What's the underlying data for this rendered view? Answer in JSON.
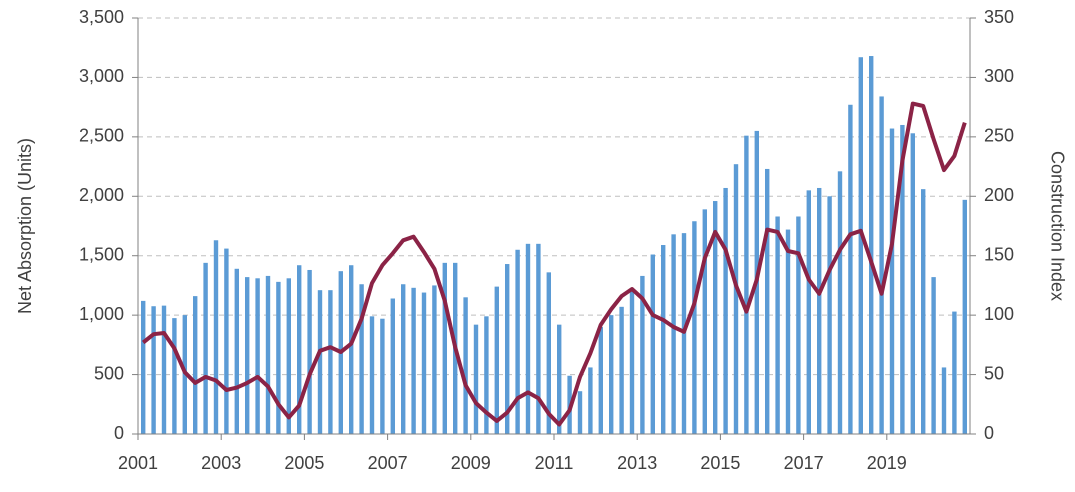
{
  "chart_data": {
    "type": "bar_line",
    "y_label": "Net Absorption (Units)",
    "y2_label": "Construction Index",
    "categories": [
      "2001",
      null,
      null,
      null,
      null,
      null,
      null,
      null,
      "2003",
      null,
      null,
      null,
      null,
      null,
      null,
      null,
      "2005",
      null,
      null,
      null,
      null,
      null,
      null,
      null,
      "2007",
      null,
      null,
      null,
      null,
      null,
      null,
      null,
      "2009",
      null,
      null,
      null,
      null,
      null,
      null,
      null,
      "2011",
      null,
      null,
      null,
      null,
      null,
      null,
      null,
      "2013",
      null,
      null,
      null,
      null,
      null,
      null,
      null,
      "2015",
      null,
      null,
      null,
      null,
      null,
      null,
      null,
      "2017",
      null,
      null,
      null,
      null,
      null,
      null,
      null,
      "2019",
      null,
      null,
      null,
      null,
      null,
      null,
      null
    ],
    "series": [
      {
        "type": "bar",
        "color": "#5b9bd5",
        "values": [
          1120,
          1075,
          1080,
          975,
          1000,
          1160,
          1440,
          1630,
          1560,
          1390,
          1320,
          1310,
          1330,
          1280,
          1310,
          1420,
          1380,
          1210,
          1210,
          1370,
          1420,
          1260,
          990,
          970,
          1140,
          1260,
          1230,
          1190,
          1250,
          1440,
          1440,
          1150,
          920,
          990,
          1240,
          1430,
          1550,
          1600,
          1600,
          1360,
          920,
          490,
          360,
          560,
          900,
          1000,
          1070,
          1200,
          1330,
          1510,
          1590,
          1680,
          1690,
          1790,
          1890,
          1960,
          2070,
          2270,
          2510,
          2550,
          2230,
          1830,
          1720,
          1830,
          2050,
          2070,
          2000,
          2210,
          2770,
          3170,
          3180,
          2840,
          2570,
          2600,
          2530,
          2060,
          1320,
          560,
          1030,
          1970
        ]
      },
      {
        "type": "line",
        "axis": "y2",
        "color": "#8b2346",
        "values": [
          77,
          84,
          85,
          72,
          52,
          43,
          48,
          45,
          37,
          39,
          43,
          48,
          40,
          25,
          14,
          24,
          50,
          70,
          73,
          69,
          76,
          97,
          127,
          142,
          152,
          163,
          166,
          153,
          139,
          112,
          73,
          41,
          26,
          18,
          11,
          18,
          30,
          35,
          30,
          17,
          8,
          20,
          48,
          68,
          92,
          105,
          116,
          122,
          114,
          100,
          96,
          90,
          86,
          110,
          148,
          170,
          155,
          125,
          103,
          130,
          172,
          170,
          154,
          152,
          130,
          118,
          138,
          155,
          168,
          171,
          145,
          118,
          160,
          230,
          278,
          276,
          248,
          222,
          234,
          262
        ]
      }
    ],
    "ylim": [
      0,
      3500
    ],
    "yticks": [
      0,
      500,
      {
        "value": 1000,
        "label": "1,000"
      },
      {
        "value": 1500,
        "label": "1,500"
      },
      {
        "value": 2000,
        "label": "2,000"
      },
      {
        "value": 2500,
        "label": "2,500"
      },
      {
        "value": 3000,
        "label": "3,000"
      },
      {
        "value": 3500,
        "label": "3,500"
      }
    ],
    "y2lim": [
      0,
      350
    ],
    "y2ticks": [
      0,
      50,
      100,
      150,
      200,
      250,
      300,
      350
    ],
    "grid": true
  }
}
